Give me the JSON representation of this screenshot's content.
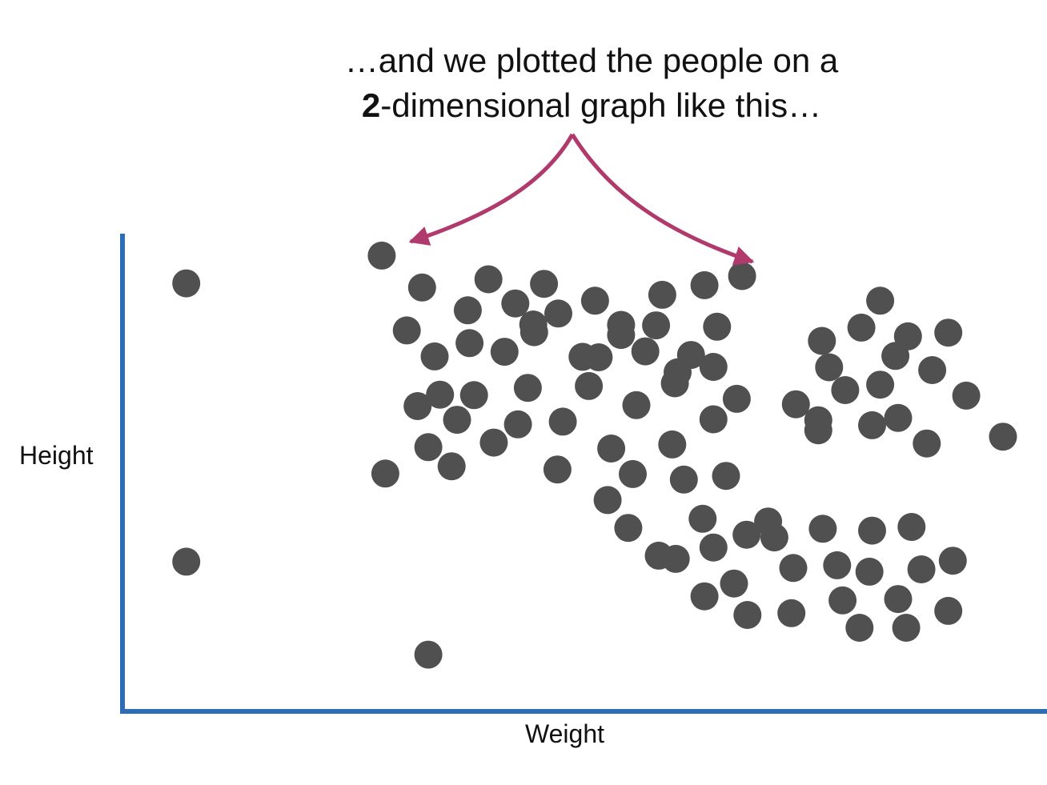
{
  "caption": {
    "line1": "…and we plotted the people on a",
    "line2_bold": "2",
    "line2_rest": "-dimensional graph like this…"
  },
  "colors": {
    "axis": "#2e6db4",
    "point": "#505050",
    "arrow": "#b03a6c"
  },
  "chart_data": {
    "type": "scatter",
    "title": "",
    "xlabel": "Weight",
    "ylabel": "Height",
    "grid": false,
    "ticks": false,
    "xlim": [
      0,
      100
    ],
    "ylim": [
      0,
      100
    ],
    "points": [
      [
        5.6,
        90.5
      ],
      [
        5.6,
        29.5
      ],
      [
        27.4,
        96.6
      ],
      [
        32.6,
        9.1
      ],
      [
        27.8,
        48.8
      ],
      [
        31.9,
        89.6
      ],
      [
        39.3,
        91.4
      ],
      [
        37.0,
        84.6
      ],
      [
        30.2,
        80.2
      ],
      [
        42.3,
        86.1
      ],
      [
        44.3,
        81.5
      ],
      [
        45.5,
        90.4
      ],
      [
        51.2,
        86.7
      ],
      [
        54.1,
        81.4
      ],
      [
        58.7,
        88.0
      ],
      [
        63.4,
        90.1
      ],
      [
        64.8,
        81.0
      ],
      [
        67.6,
        92.1
      ],
      [
        33.3,
        74.5
      ],
      [
        37.2,
        77.4
      ],
      [
        41.1,
        75.5
      ],
      [
        44.4,
        79.8
      ],
      [
        47.1,
        83.9
      ],
      [
        49.8,
        74.4
      ],
      [
        51.6,
        74.3
      ],
      [
        54.1,
        79.2
      ],
      [
        56.8,
        75.6
      ],
      [
        58.0,
        81.3
      ],
      [
        60.4,
        71.0
      ],
      [
        61.9,
        74.8
      ],
      [
        64.4,
        72.2
      ],
      [
        31.4,
        63.6
      ],
      [
        33.9,
        66.1
      ],
      [
        37.7,
        66.0
      ],
      [
        42.6,
        59.6
      ],
      [
        43.7,
        67.6
      ],
      [
        47.6,
        60.2
      ],
      [
        50.5,
        68.0
      ],
      [
        53.0,
        54.3
      ],
      [
        55.8,
        63.8
      ],
      [
        60.1,
        68.6
      ],
      [
        64.4,
        60.7
      ],
      [
        35.8,
        60.6
      ],
      [
        32.6,
        54.6
      ],
      [
        35.2,
        50.4
      ],
      [
        39.9,
        55.6
      ],
      [
        47.0,
        49.7
      ],
      [
        52.6,
        43.0
      ],
      [
        55.4,
        48.7
      ],
      [
        59.8,
        55.2
      ],
      [
        61.1,
        47.5
      ],
      [
        65.8,
        48.3
      ],
      [
        54.9,
        36.9
      ],
      [
        58.3,
        30.8
      ],
      [
        60.2,
        30.1
      ],
      [
        63.2,
        38.9
      ],
      [
        64.4,
        32.6
      ],
      [
        68.1,
        35.4
      ],
      [
        70.5,
        38.3
      ],
      [
        71.2,
        34.8
      ],
      [
        63.4,
        21.9
      ],
      [
        66.7,
        24.7
      ],
      [
        68.2,
        17.8
      ],
      [
        73.3,
        28.1
      ],
      [
        73.1,
        18.2
      ],
      [
        76.6,
        36.7
      ],
      [
        78.2,
        28.7
      ],
      [
        78.8,
        21.0
      ],
      [
        80.7,
        15.0
      ],
      [
        82.1,
        36.3
      ],
      [
        81.8,
        27.3
      ],
      [
        85.0,
        21.3
      ],
      [
        85.9,
        15.0
      ],
      [
        86.5,
        37.1
      ],
      [
        87.6,
        27.8
      ],
      [
        90.6,
        18.7
      ],
      [
        91.1,
        29.7
      ],
      [
        67.0,
        65.2
      ],
      [
        76.5,
        77.9
      ],
      [
        77.3,
        72.1
      ],
      [
        76.1,
        60.5
      ],
      [
        80.9,
        80.8
      ],
      [
        83.0,
        86.7
      ],
      [
        84.7,
        74.6
      ],
      [
        86.1,
        78.9
      ],
      [
        88.8,
        71.5
      ],
      [
        90.6,
        79.7
      ],
      [
        73.6,
        64.0
      ],
      [
        79.1,
        67.1
      ],
      [
        83.0,
        68.3
      ],
      [
        76.1,
        58.3
      ],
      [
        82.1,
        59.4
      ],
      [
        85.0,
        61.0
      ],
      [
        88.2,
        55.4
      ],
      [
        92.6,
        65.9
      ],
      [
        96.7,
        56.9
      ]
    ]
  }
}
